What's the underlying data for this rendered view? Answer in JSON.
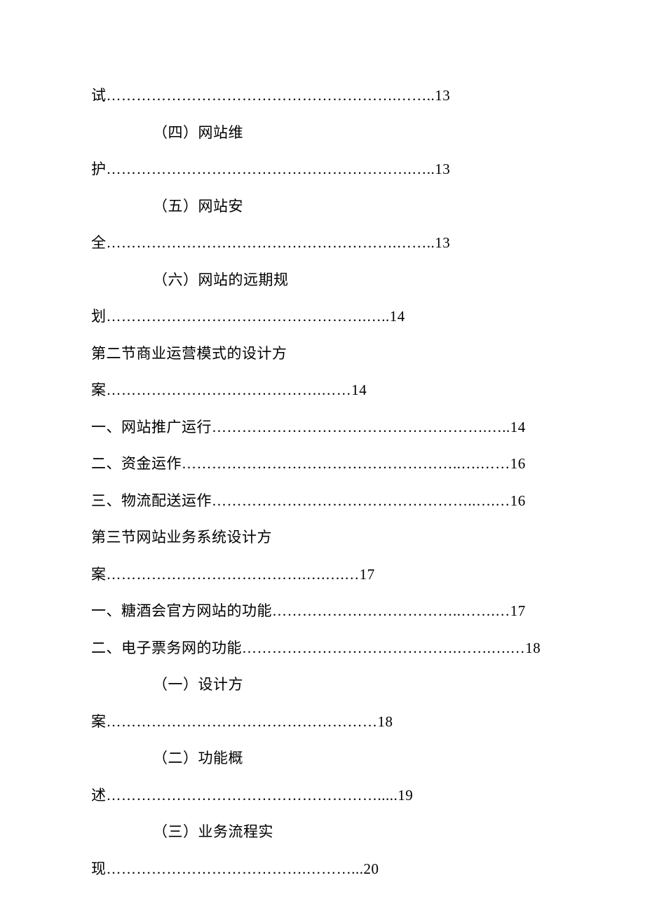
{
  "page": {
    "background_color": "#ffffff",
    "text_color": "#000000",
    "font_family": "SimSun",
    "font_size": 21,
    "line_height": 2.5
  },
  "toc_entries": [
    {
      "indent": false,
      "text": "试………………………………………………….……..13"
    },
    {
      "indent": true,
      "text": "（四）网站维"
    },
    {
      "indent": false,
      "text": "护…………………………………………………….…..13"
    },
    {
      "indent": true,
      "text": "（五）网站安"
    },
    {
      "indent": false,
      "text": "全………………………………………………….……..13"
    },
    {
      "indent": true,
      "text": "（六）网站的远期规"
    },
    {
      "indent": false,
      "text": "划…………………………………………….…..14"
    },
    {
      "indent": false,
      "text": "第二节商业运营模式的设计方"
    },
    {
      "indent": false,
      "text": "案…………………………………….……14"
    },
    {
      "indent": false,
      "text": "一、网站推广运行……………………………………………….…..14"
    },
    {
      "indent": false,
      "text": "二、资金运作………………………………………………..….……16"
    },
    {
      "indent": false,
      "text": "三、物流配送运作……………………………………………..….…16"
    },
    {
      "indent": false,
      "text": "第三节网站业务系统设计方"
    },
    {
      "indent": false,
      "text": "案………………………………….….….…17"
    },
    {
      "indent": false,
      "text": "一、糖酒会官方网站的功能………………………………..…….…17"
    },
    {
      "indent": false,
      "text": "二、电子票务网的功能…………………………………….…….….…18"
    },
    {
      "indent": true,
      "text": "（一）设计方"
    },
    {
      "indent": false,
      "text": "案………………………………………………18"
    },
    {
      "indent": true,
      "text": "（二）功能概"
    },
    {
      "indent": false,
      "text": "述……………………………………………….....19"
    },
    {
      "indent": true,
      "text": "（三）业务流程实"
    },
    {
      "indent": false,
      "text": "现………………………………….………...20"
    }
  ]
}
